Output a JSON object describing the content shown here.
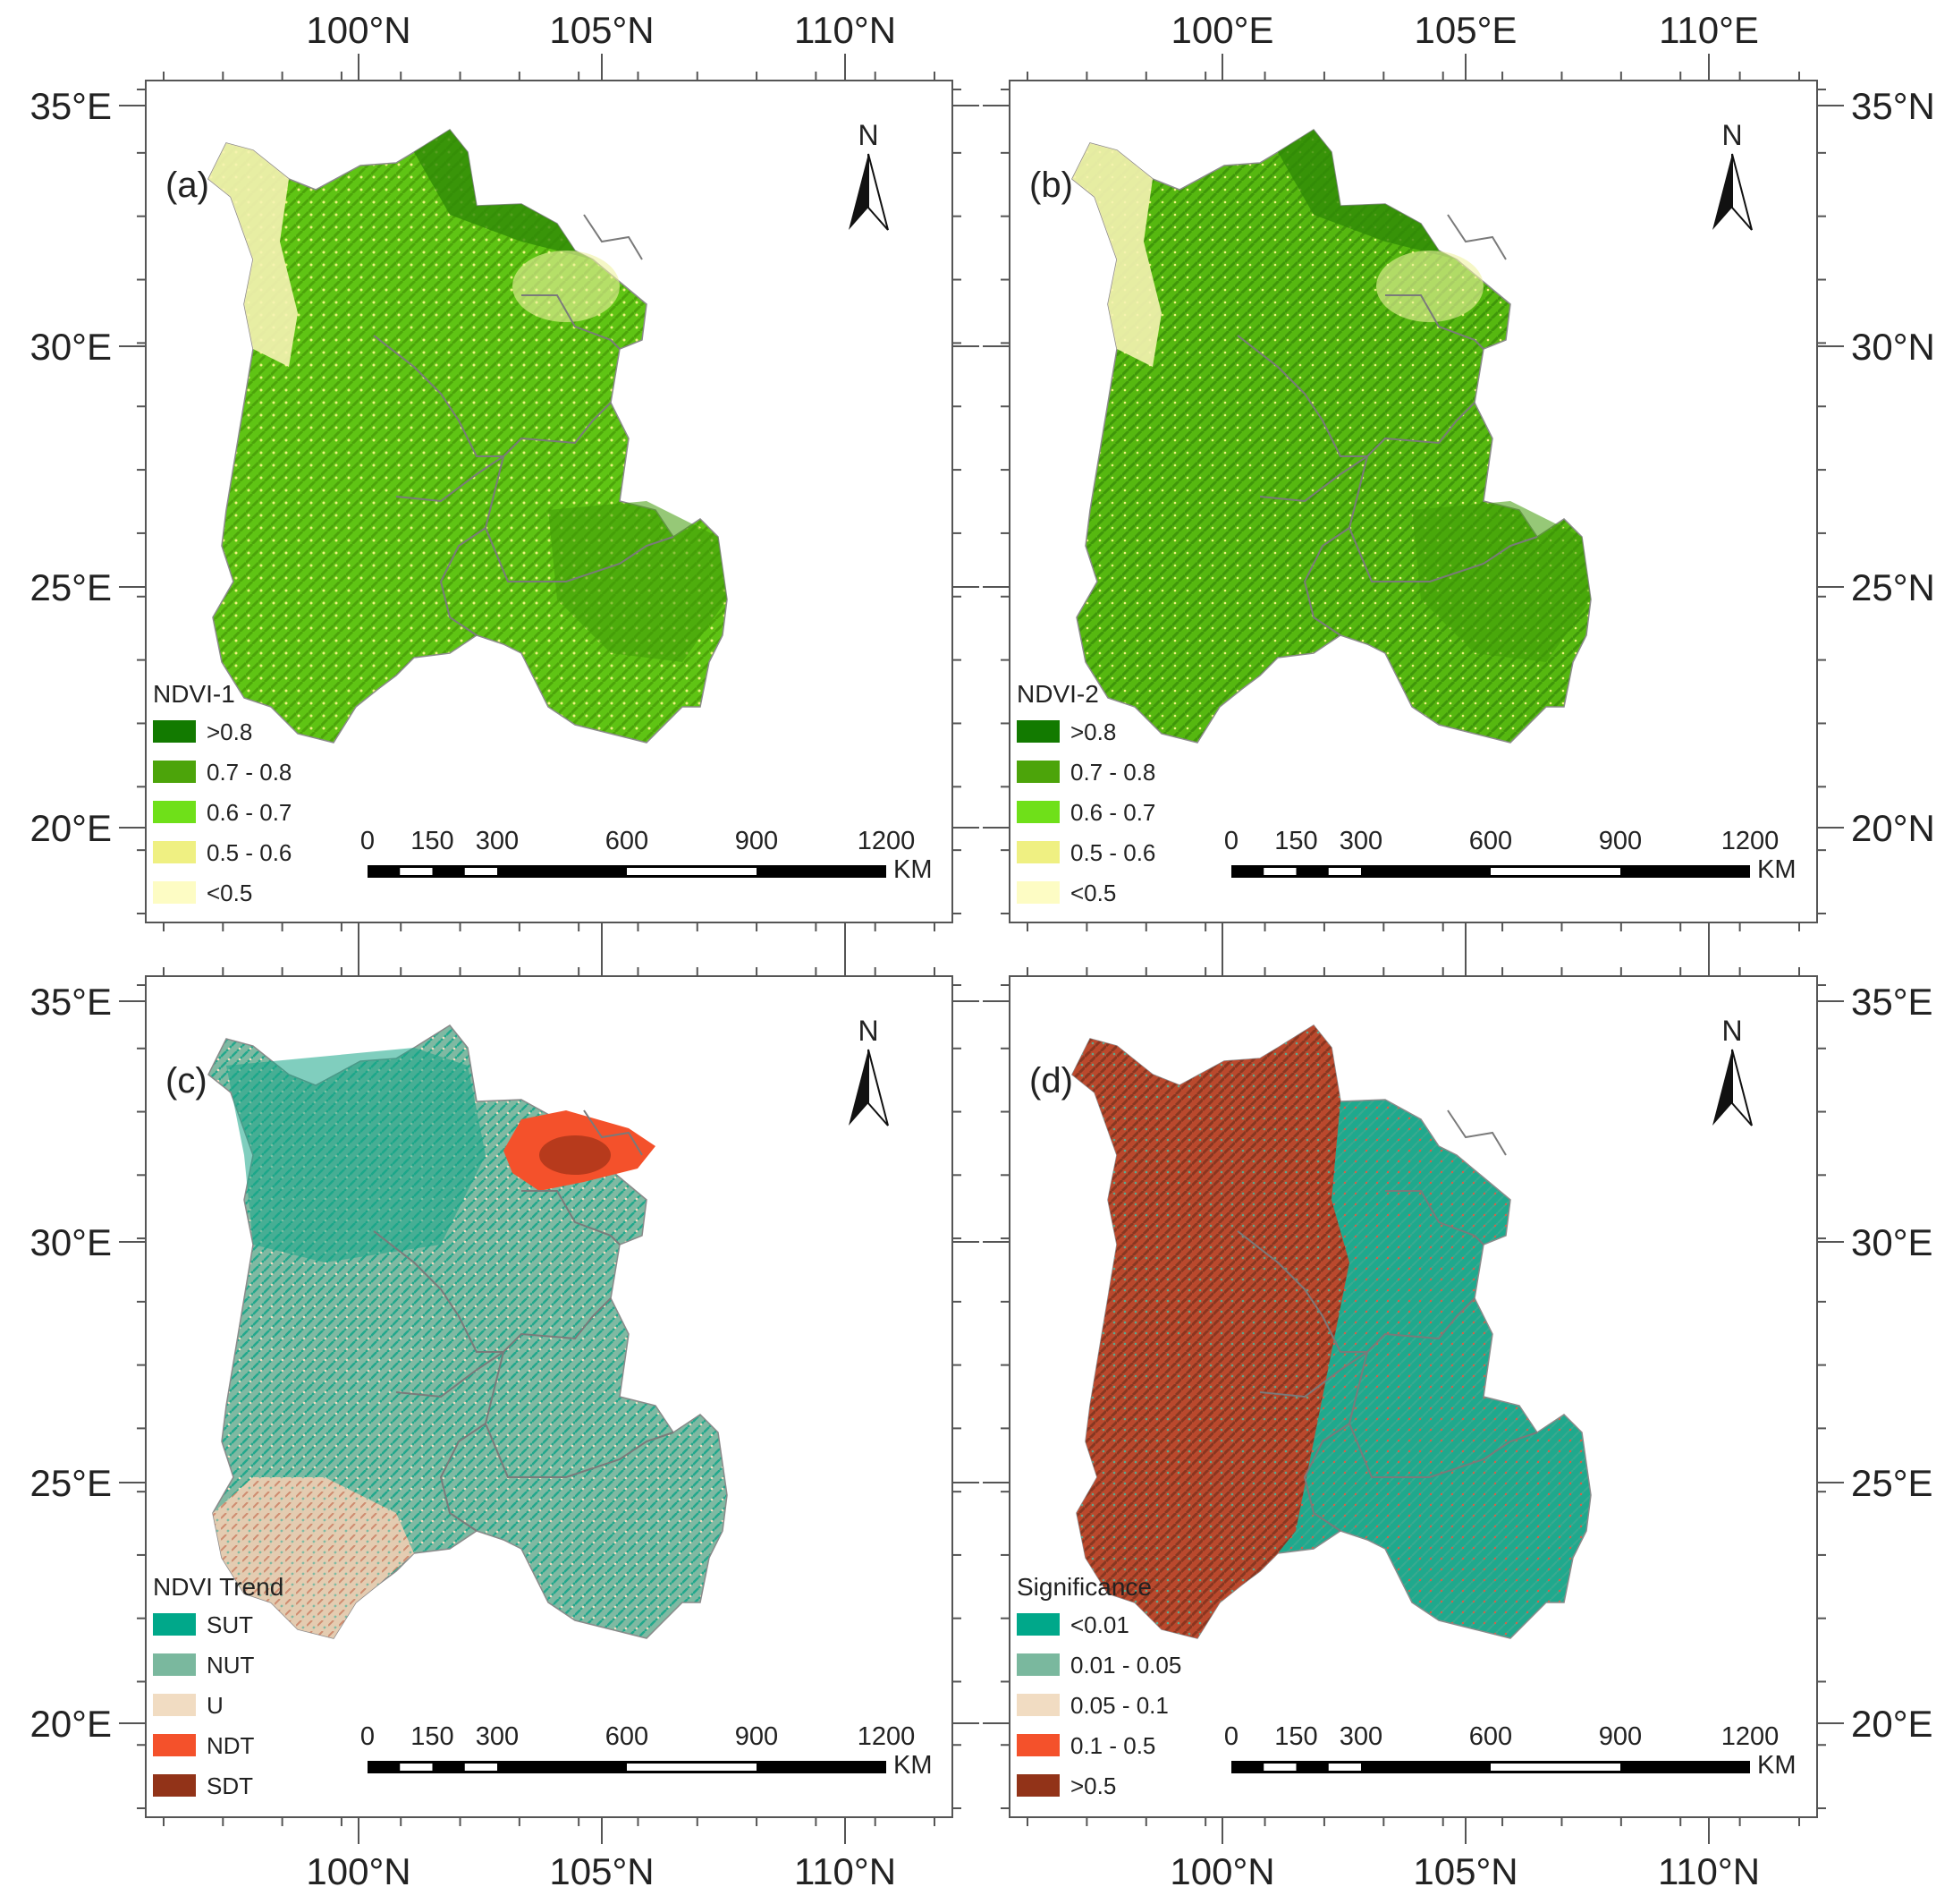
{
  "figure": {
    "colors": {
      "frame": "#555555",
      "border": "#7a7a7a"
    },
    "top_axis_labels": [
      "100°N",
      "105°N",
      "110°N"
    ],
    "top_axis_labels_right": [
      "100°E",
      "105°E",
      "110°E"
    ],
    "bottom_axis_labels": [
      "100°N",
      "105°N",
      "110°N"
    ],
    "left_axis_labels": [
      "35°E",
      "30°E",
      "25°E",
      "20°E"
    ],
    "right_axis_labels": [
      "35°N",
      "30°N",
      "25°N",
      "20°N"
    ],
    "right_axis_labels_bottom": [
      "35°E",
      "30°E",
      "25°E",
      "20°E"
    ],
    "north_label": "N",
    "scale_bar": {
      "ticks": [
        "0",
        "150",
        "300",
        "600",
        "900",
        "1200"
      ],
      "unit": "KM"
    }
  },
  "panels": [
    {
      "letter": "(a)",
      "legend_title": "NDVI-1",
      "legend_items": [
        {
          "label": ">0.8",
          "color": "#127a00"
        },
        {
          "label": "0.7 - 0.8",
          "color": "#4ca40a"
        },
        {
          "label": "0.6 - 0.7",
          "color": "#6fe019"
        },
        {
          "label": "0.5 - 0.6",
          "color": "#eff082"
        },
        {
          "label": "<0.5",
          "color": "#fdfcc4"
        }
      ],
      "map_fill": "#5fc414"
    },
    {
      "letter": "(b)",
      "legend_title": "NDVI-2",
      "legend_items": [
        {
          "label": ">0.8",
          "color": "#127a00"
        },
        {
          "label": "0.7 - 0.8",
          "color": "#4ca40a"
        },
        {
          "label": "0.6 - 0.7",
          "color": "#6fe019"
        },
        {
          "label": "0.5 - 0.6",
          "color": "#eff082"
        },
        {
          "label": "<0.5",
          "color": "#fdfcc4"
        }
      ],
      "map_fill": "#56b810"
    },
    {
      "letter": "(c)",
      "legend_title": "NDVI Trend",
      "legend_items": [
        {
          "label": "SUT",
          "color": "#00a88a"
        },
        {
          "label": "NUT",
          "color": "#7ab89e"
        },
        {
          "label": "U",
          "color": "#f1dcc2"
        },
        {
          "label": "NDT",
          "color": "#f4512b"
        },
        {
          "label": "SDT",
          "color": "#923318"
        }
      ],
      "map_fill": "#7fb9a2"
    },
    {
      "letter": "(d)",
      "legend_title": "Significance",
      "legend_items": [
        {
          "label": "<0.01",
          "color": "#00a88a"
        },
        {
          "label": "0.01 - 0.05",
          "color": "#7ab89e"
        },
        {
          "label": "0.05 - 0.1",
          "color": "#f1dcc2"
        },
        {
          "label": "0.1 - 0.5",
          "color": "#f4512b"
        },
        {
          "label": ">0.5",
          "color": "#923318"
        }
      ],
      "map_fill": "#1fa98d"
    }
  ]
}
